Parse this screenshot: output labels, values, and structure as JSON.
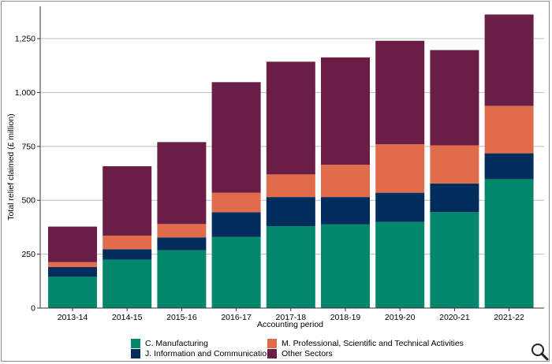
{
  "chart_data": {
    "type": "bar",
    "stacked": true,
    "categories": [
      "2013-14",
      "2014-15",
      "2015-16",
      "2016-17",
      "2017-18",
      "2018-19",
      "2019-20",
      "2020-21",
      "2021-22"
    ],
    "series": [
      {
        "name": "C. Manufacturing",
        "color": "#00876c",
        "values": [
          145,
          225,
          268,
          330,
          380,
          388,
          400,
          445,
          598
        ]
      },
      {
        "name": "J. Information and Communication",
        "color": "#002d5c",
        "values": [
          45,
          48,
          60,
          115,
          135,
          127,
          135,
          133,
          120
        ]
      },
      {
        "name": "M. Professional, Scientific and Technical Activities",
        "color": "#e06c4c",
        "values": [
          23,
          63,
          62,
          90,
          105,
          150,
          225,
          177,
          220
        ]
      },
      {
        "name": "Other Sectors",
        "color": "#6b1e45",
        "values": [
          165,
          322,
          380,
          513,
          523,
          498,
          480,
          442,
          424
        ]
      }
    ],
    "title": "",
    "xlabel": "Accounting period",
    "ylabel": "Total relief claimed (£ million)",
    "ylim": [
      0,
      1400
    ],
    "yticks": [
      0,
      250,
      500,
      750,
      1000,
      1250
    ],
    "ytick_labels": [
      "0",
      "250",
      "500",
      "750",
      "1,000",
      "1,250"
    ],
    "grid": "horizontal",
    "legend_position": "bottom",
    "legend_order": [
      "C. Manufacturing",
      "M. Professional, Scientific and Technical Activities",
      "J. Information and Communication",
      "Other Sectors"
    ]
  },
  "icons": {
    "zoom": "magnifier-icon"
  }
}
